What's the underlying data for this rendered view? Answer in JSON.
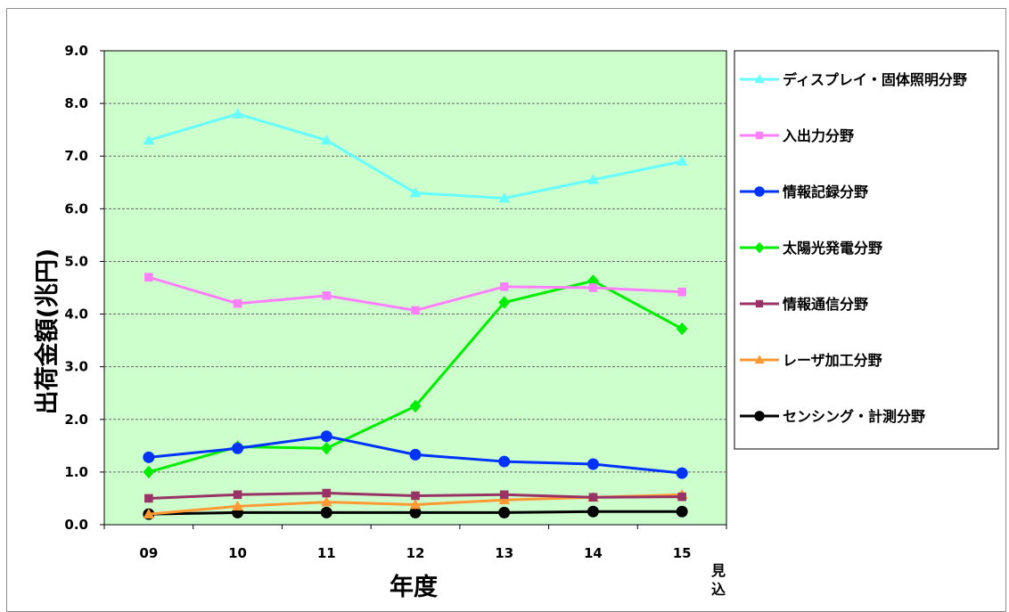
{
  "chart_data": {
    "type": "line",
    "title": "",
    "xlabel": "年度",
    "ylabel": "出荷金額(兆円)",
    "x_note": [
      "見",
      "込"
    ],
    "categories": [
      "09",
      "10",
      "11",
      "12",
      "13",
      "14",
      "15"
    ],
    "ylim": [
      0,
      9
    ],
    "yticks": [
      "0.0",
      "1.0",
      "2.0",
      "3.0",
      "4.0",
      "5.0",
      "6.0",
      "7.0",
      "8.0",
      "9.0"
    ],
    "grid": true,
    "plot_background": "#ccffcc",
    "legend_position": "right",
    "series": [
      {
        "name": "ディスプレイ・固体照明分野",
        "color": "#66ffff",
        "marker": "triangle",
        "values": [
          7.3,
          7.8,
          7.3,
          6.3,
          6.2,
          6.55,
          6.9
        ]
      },
      {
        "name": "入出力分野",
        "color": "#ff80ff",
        "marker": "square",
        "values": [
          4.7,
          4.2,
          4.35,
          4.07,
          4.52,
          4.5,
          4.42
        ]
      },
      {
        "name": "情報記録分野",
        "color": "#0033ff",
        "marker": "circle",
        "values": [
          1.28,
          1.45,
          1.68,
          1.33,
          1.2,
          1.15,
          0.98
        ]
      },
      {
        "name": "太陽光発電分野",
        "color": "#00ee00",
        "marker": "diamond",
        "values": [
          1.0,
          1.48,
          1.45,
          2.25,
          4.22,
          4.63,
          3.72
        ]
      },
      {
        "name": "情報通信分野",
        "color": "#993366",
        "marker": "square",
        "values": [
          0.5,
          0.57,
          0.6,
          0.55,
          0.57,
          0.52,
          0.53
        ]
      },
      {
        "name": "レーザ加工分野",
        "color": "#ff9933",
        "marker": "triangle",
        "values": [
          0.2,
          0.35,
          0.43,
          0.38,
          0.47,
          0.52,
          0.57
        ]
      },
      {
        "name": "センシング・計測分野",
        "color": "#000000",
        "marker": "circle",
        "values": [
          0.2,
          0.23,
          0.23,
          0.23,
          0.23,
          0.25,
          0.25
        ]
      }
    ]
  }
}
